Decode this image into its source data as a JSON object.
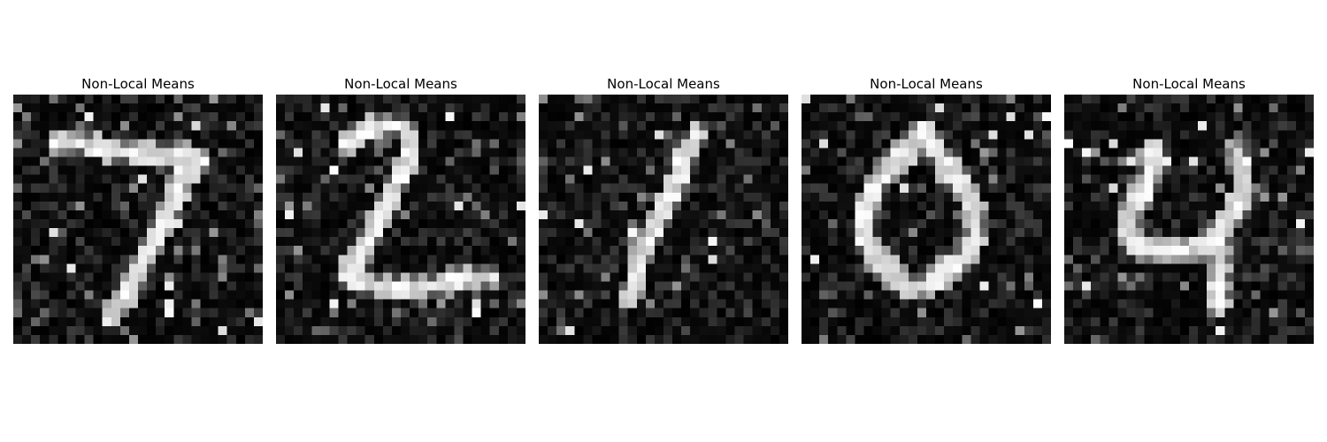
{
  "figure": {
    "panels": [
      {
        "title": "Non-Local Means",
        "digit_glyph": "7"
      },
      {
        "title": "Non-Local Means",
        "digit_glyph": "2"
      },
      {
        "title": "Non-Local Means",
        "digit_glyph": "1"
      },
      {
        "title": "Non-Local Means",
        "digit_glyph": "0"
      },
      {
        "title": "Non-Local Means",
        "digit_glyph": "4"
      }
    ],
    "colormap": "gray",
    "background_color": "#ffffff"
  }
}
